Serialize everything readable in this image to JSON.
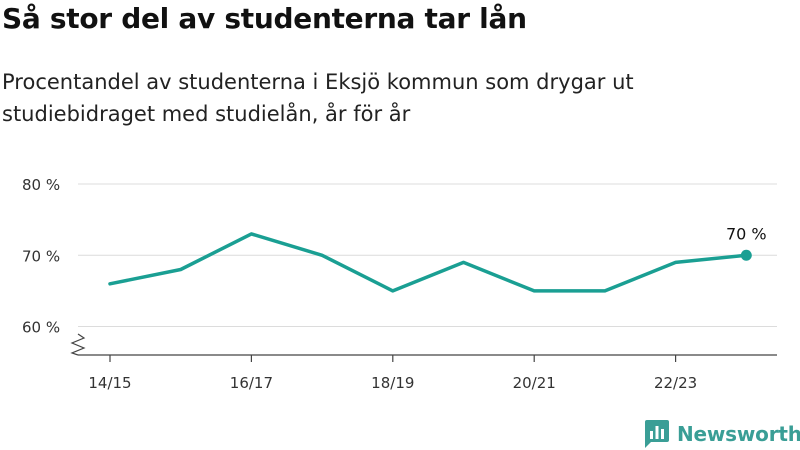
{
  "header": {
    "title": "Så stor del av studenterna tar lån",
    "subtitle": "Procentandel av studenterna i Eksjö kommun som drygar ut studiebidraget med studielån, år för år"
  },
  "branding": {
    "name": "Newsworthy",
    "icon": "newsworthy-logo-icon",
    "color": "#3a9e96"
  },
  "chart_data": {
    "type": "line",
    "title": "",
    "xlabel": "",
    "ylabel": "",
    "x": [
      "14/15",
      "15/16",
      "16/17",
      "17/18",
      "18/19",
      "19/20",
      "20/21",
      "21/22",
      "22/23",
      "23/24"
    ],
    "x_tick_labels": [
      "14/15",
      "16/17",
      "18/19",
      "20/21",
      "22/23"
    ],
    "y_tick_labels": [
      "60 %",
      "70 %",
      "80 %"
    ],
    "y_ticks": [
      60,
      70,
      80
    ],
    "ylim": [
      56,
      80
    ],
    "y_axis_broken": true,
    "grid": true,
    "series": [
      {
        "values": [
          66,
          68,
          73,
          70,
          65,
          69,
          65,
          65,
          69,
          70
        ],
        "color": "#1a9f93"
      }
    ],
    "annotations": [
      {
        "x": "23/24",
        "y": 70,
        "label": "70 %"
      }
    ]
  }
}
